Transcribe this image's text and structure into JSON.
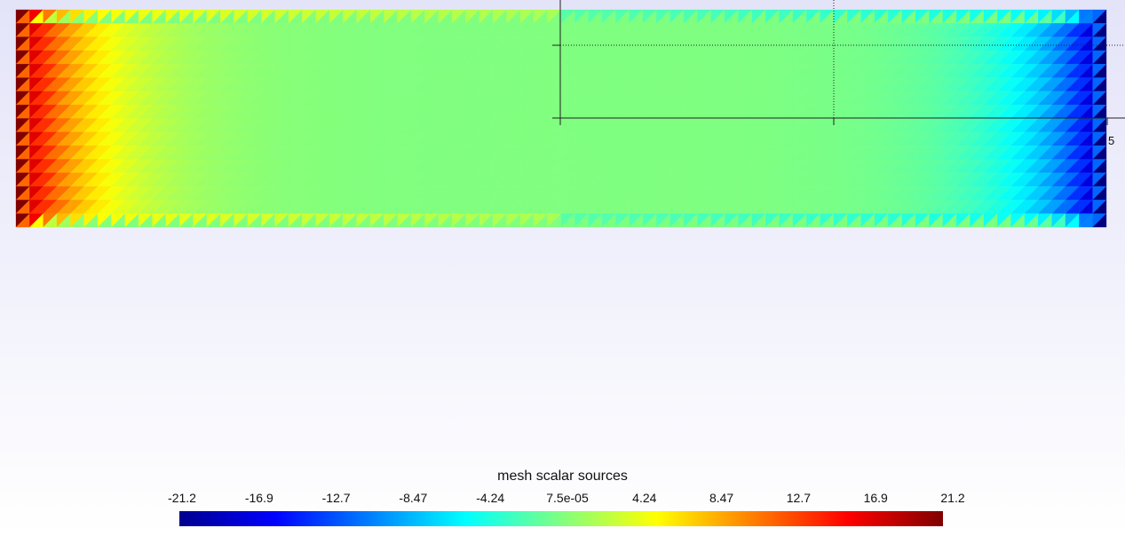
{
  "chart_data": {
    "type": "heatmap",
    "title": "mesh scalar sources",
    "colormap": "jet",
    "colorbar": {
      "title": "mesh scalar sources",
      "range": [
        -21.2,
        21.2
      ],
      "tick_labels": [
        "-21.2",
        "-16.9",
        "-12.7",
        "-8.47",
        "-4.24",
        "7.5e-05",
        "4.24",
        "8.47",
        "12.7",
        "16.9",
        "21.2"
      ],
      "orientation": "horizontal",
      "placement": "bottom"
    },
    "mesh": {
      "element": "triangle",
      "columns": 80,
      "rows": 16,
      "description_values": {
        "left_edge": 21.2,
        "interior": 0,
        "right_edge": -21.2
      }
    },
    "overlay_axis": {
      "tick_label": "5",
      "grid": true
    }
  }
}
